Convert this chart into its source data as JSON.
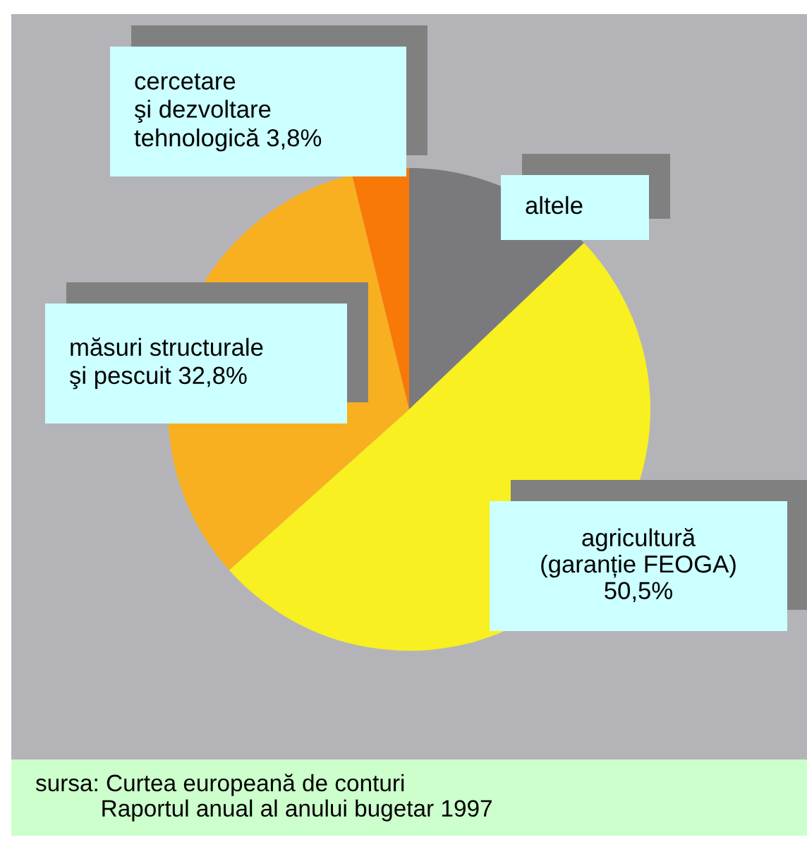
{
  "chart_data": {
    "type": "pie",
    "categories": [
      "altele",
      "agricultură\n(garanție FEOGA)\n50,5%",
      "măsuri structurale\nşi pescuit 32,8%",
      "cercetare\nşi dezvoltare\ntehnologică 3,8%"
    ],
    "values": [
      12.9,
      50.5,
      32.8,
      3.8
    ],
    "colors": [
      "#7a7a7e",
      "#f8f020",
      "#f8b020",
      "#f87808"
    ],
    "annotations": [
      "sursa: Curtea europeană de conturi\n          Raportul anual al anului bugetar 1997"
    ]
  }
}
